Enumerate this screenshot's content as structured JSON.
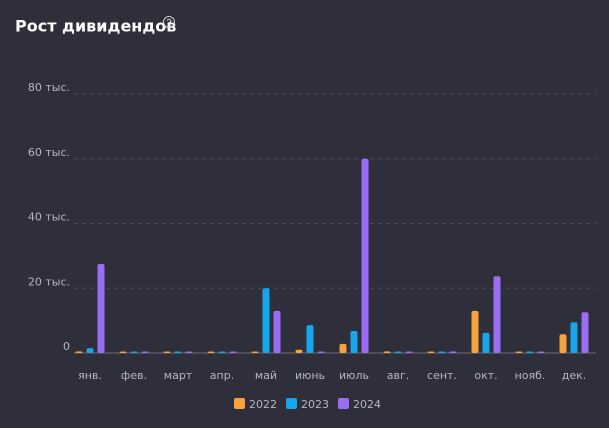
{
  "chart_data": {
    "type": "bar",
    "title": "Рост дивидендов",
    "categories": [
      "янв.",
      "фев.",
      "март",
      "апр.",
      "май",
      "июнь",
      "июль",
      "авг.",
      "сент.",
      "окт.",
      "нояб.",
      "дек."
    ],
    "series": [
      {
        "name": "2022",
        "color": "#f7a23b",
        "values": [
          500,
          300,
          200,
          100,
          0,
          1000,
          2800,
          500,
          0,
          13000,
          200,
          5800
        ]
      },
      {
        "name": "2023",
        "color": "#15a6ec",
        "values": [
          1500,
          200,
          200,
          200,
          20000,
          8600,
          6800,
          300,
          100,
          6200,
          200,
          9500
        ]
      },
      {
        "name": "2024",
        "color": "#9b6cf4",
        "values": [
          27500,
          0,
          200,
          200,
          13000,
          300,
          60000,
          0,
          500,
          23700,
          300,
          12600
        ]
      }
    ],
    "ylim": [
      0,
      80000
    ],
    "yticks": [
      0,
      {
        "value": 20000,
        "label": "20 тыс."
      },
      {
        "value": 40000,
        "label": "40 тыс."
      },
      {
        "value": 60000,
        "label": "60 тыс."
      },
      {
        "value": 80000,
        "label": "80 тыс."
      }
    ],
    "grid": true
  }
}
